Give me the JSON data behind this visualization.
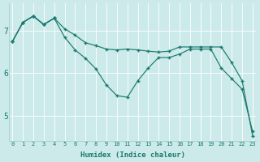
{
  "xlabel": "Humidex (Indice chaleur)",
  "bg_color": "#cceaea",
  "line_color": "#1a7a6e",
  "xlim": [
    -0.3,
    23.3
  ],
  "ylim": [
    4.4,
    7.65
  ],
  "yticks": [
    5,
    6,
    7
  ],
  "xticks": [
    0,
    1,
    2,
    3,
    4,
    5,
    6,
    7,
    8,
    9,
    10,
    11,
    12,
    13,
    14,
    15,
    16,
    17,
    18,
    19,
    20,
    21,
    22,
    23
  ],
  "line1_x": [
    0,
    1,
    2,
    3,
    4,
    5,
    6,
    7,
    8,
    9,
    10,
    11,
    12,
    13,
    14,
    15,
    16,
    17,
    18,
    19,
    20,
    21,
    22,
    23
  ],
  "line1_y": [
    6.75,
    7.2,
    7.35,
    7.15,
    7.3,
    7.05,
    6.9,
    6.72,
    6.65,
    6.57,
    6.55,
    6.57,
    6.55,
    6.52,
    6.5,
    6.52,
    6.62,
    6.62,
    6.62,
    6.62,
    6.62,
    6.25,
    5.82,
    4.52
  ],
  "line2_x": [
    0,
    1,
    2,
    3,
    4,
    5,
    6,
    7,
    8,
    9,
    10,
    11,
    12,
    13,
    14,
    15,
    16,
    17,
    18,
    19,
    20,
    21,
    22,
    23
  ],
  "line2_y": [
    6.75,
    7.2,
    7.35,
    7.15,
    7.3,
    6.85,
    6.55,
    6.35,
    6.1,
    5.72,
    5.47,
    5.43,
    5.82,
    6.12,
    6.37,
    6.37,
    6.45,
    6.57,
    6.57,
    6.57,
    6.12,
    5.87,
    5.62,
    4.62
  ],
  "line3_x": [
    0,
    1,
    2,
    3,
    4
  ],
  "line3_y": [
    6.75,
    7.2,
    7.35,
    7.15,
    7.3
  ]
}
